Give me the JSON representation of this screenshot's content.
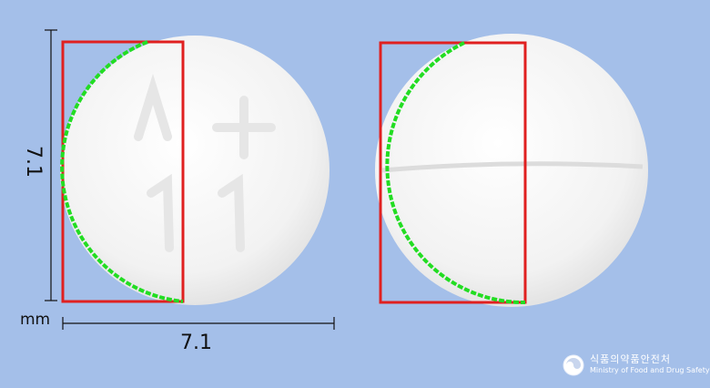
{
  "measurements": {
    "height_label": "7.1",
    "width_label": "7.1",
    "unit": "mm"
  },
  "tablets": [
    {
      "imprint_top": "A+",
      "imprint_bottom": "11",
      "side": "front"
    },
    {
      "score_line": true,
      "side": "back"
    }
  ],
  "agency": {
    "name_ko": "식품의약품안전처",
    "name_en": "Ministry of Food and Drug Safety"
  },
  "colors": {
    "background": "#a4bfe9",
    "outline": "#e02020",
    "contour": "#22dd22",
    "tablet": "#f4f4f4"
  }
}
